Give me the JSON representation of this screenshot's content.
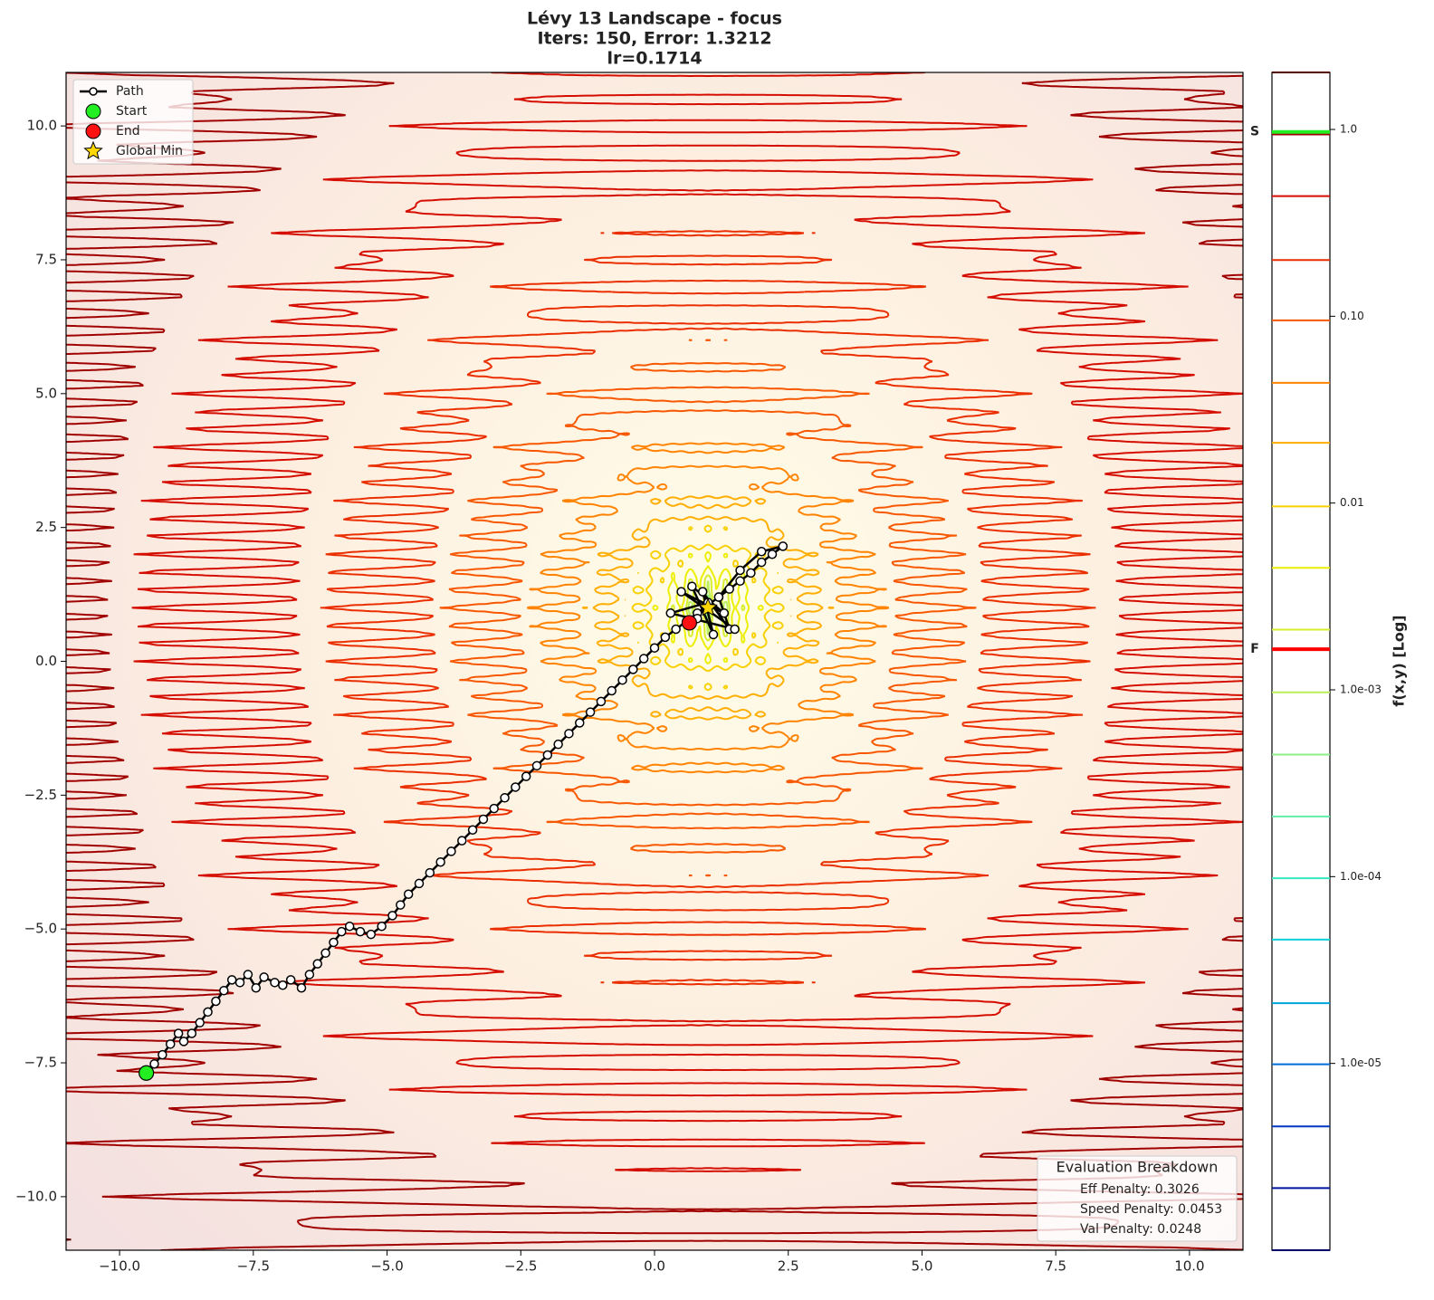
{
  "chart_data": {
    "type": "contour",
    "title": "Lévy 13 Landscape - focus",
    "subtitle": [
      "Iters: 150, Error: 1.3212",
      "lr=0.1714"
    ],
    "xlim": [
      -11,
      11
    ],
    "ylim": [
      -11,
      11
    ],
    "xticks": [
      {
        "value": -10,
        "label": "−10.0"
      },
      {
        "value": -7.5,
        "label": "−7.5"
      },
      {
        "value": -5,
        "label": "−5.0"
      },
      {
        "value": -2.5,
        "label": "−2.5"
      },
      {
        "value": 0,
        "label": "0.0"
      },
      2.5,
      {
        "value": 5,
        "label": "5.0"
      },
      7.5,
      {
        "value": 10,
        "label": "10.0"
      }
    ],
    "yticks": [
      {
        "value": -10,
        "label": "−10.0"
      },
      {
        "value": -7.5,
        "label": "−7.5"
      },
      {
        "value": -5,
        "label": "−5.0"
      },
      {
        "value": -2.5,
        "label": "−2.5"
      },
      {
        "value": 0,
        "label": "0.0"
      },
      2.5,
      {
        "value": 5,
        "label": "5.0"
      },
      7.5,
      {
        "value": 10,
        "label": "10.0"
      }
    ],
    "levels": [
      1e-06,
      2.15e-06,
      4.6e-06,
      9.9e-06,
      2.1e-05,
      4.6e-05,
      9.8e-05,
      0.00021,
      0.00045,
      0.00097,
      0.0021,
      0.0045,
      0.0096,
      0.021,
      0.044,
      0.095,
      0.2,
      0.44,
      0.94,
      2.02
    ],
    "colormap": [
      "#000066",
      "#0022bb",
      "#0077dd",
      "#00ccdd",
      "#44eebb",
      "#88ee88",
      "#ccee44",
      "#eeee00",
      "#ffbb00",
      "#ff7700",
      "#ee3300",
      "#cc0000",
      "#550000"
    ],
    "colorbar": {
      "label": "f(x,y) [Log]",
      "clim": [
        1e-06,
        2.02
      ],
      "log": true,
      "ticks": [
        {
          "value": 1,
          "label": "1.0"
        },
        {
          "value": 0.1,
          "label": "0.10"
        },
        0.01,
        {
          "value": 0.001,
          "label": "1.0e-03"
        },
        {
          "value": 0.0001,
          "label": "1.0e-04"
        },
        {
          "value": 1e-05,
          "label": "1.0e-05"
        }
      ],
      "markers": [
        {
          "label": "S",
          "value": 0.97,
          "color": "#22ee22"
        },
        {
          "label": "F",
          "value": 0.00165,
          "color": "#ff0000"
        }
      ]
    },
    "series": [
      {
        "name": "Path",
        "color": "#000000",
        "x": [
          -9.5,
          -9.35,
          -9.2,
          -9.05,
          -8.9,
          -8.8,
          -8.65,
          -8.5,
          -8.35,
          -8.2,
          -8.05,
          -7.9,
          -7.75,
          -7.6,
          -7.45,
          -7.3,
          -7.1,
          -6.95,
          -6.8,
          -6.6,
          -6.45,
          -6.3,
          -6.15,
          -6.0,
          -5.85,
          -5.7,
          -5.5,
          -5.3,
          -5.1,
          -4.9,
          -4.75,
          -4.6,
          -4.4,
          -4.2,
          -4.0,
          -3.8,
          -3.6,
          -3.4,
          -3.2,
          -3.0,
          -2.8,
          -2.6,
          -2.4,
          -2.2,
          -2.0,
          -1.8,
          -1.6,
          -1.4,
          -1.2,
          -1.0,
          -0.8,
          -0.6,
          -0.4,
          -0.2,
          0.0,
          0.2,
          0.4,
          0.6,
          0.8,
          1.0,
          1.2,
          1.4,
          1.6,
          1.8,
          2.0,
          2.2,
          2.4,
          2.0,
          1.6,
          1.2,
          1.4,
          0.9,
          1.1,
          0.7,
          1.3,
          0.5,
          1.5,
          0.3,
          1.0,
          0.8,
          0.65
        ],
        "values": [
          -7.69,
          -7.52,
          -7.35,
          -7.15,
          -6.95,
          -7.1,
          -6.95,
          -6.75,
          -6.55,
          -6.35,
          -6.15,
          -5.95,
          -6.0,
          -5.85,
          -6.1,
          -5.9,
          -6.0,
          -6.05,
          -5.95,
          -6.1,
          -5.85,
          -5.65,
          -5.45,
          -5.25,
          -5.05,
          -4.95,
          -5.05,
          -5.1,
          -4.95,
          -4.75,
          -4.55,
          -4.35,
          -4.15,
          -3.95,
          -3.75,
          -3.55,
          -3.35,
          -3.15,
          -2.95,
          -2.75,
          -2.55,
          -2.35,
          -2.15,
          -1.95,
          -1.75,
          -1.55,
          -1.35,
          -1.15,
          -0.95,
          -0.75,
          -0.55,
          -0.35,
          -0.15,
          0.05,
          0.25,
          0.45,
          0.6,
          0.75,
          0.9,
          1.05,
          1.2,
          1.35,
          1.5,
          1.65,
          1.85,
          2.0,
          2.15,
          2.05,
          1.7,
          1.2,
          0.6,
          1.3,
          0.5,
          1.4,
          0.9,
          1.3,
          0.6,
          0.9,
          1.1,
          0.8,
          0.72
        ]
      },
      {
        "name": "Start",
        "color": "#22ee22",
        "x": [
          -9.5
        ],
        "values": [
          -7.69
        ]
      },
      {
        "name": "End",
        "color": "#ff1111",
        "x": [
          0.65
        ],
        "values": [
          0.72
        ]
      },
      {
        "name": "Global Min",
        "color": "#ffd700",
        "x": [
          1
        ],
        "values": [
          1
        ]
      }
    ],
    "annotation": {
      "title": "Evaluation Breakdown",
      "lines": [
        "Eff Penalty: 0.3026",
        "Speed Penalty: 0.0453",
        "Val Penalty: 0.0248"
      ]
    }
  }
}
